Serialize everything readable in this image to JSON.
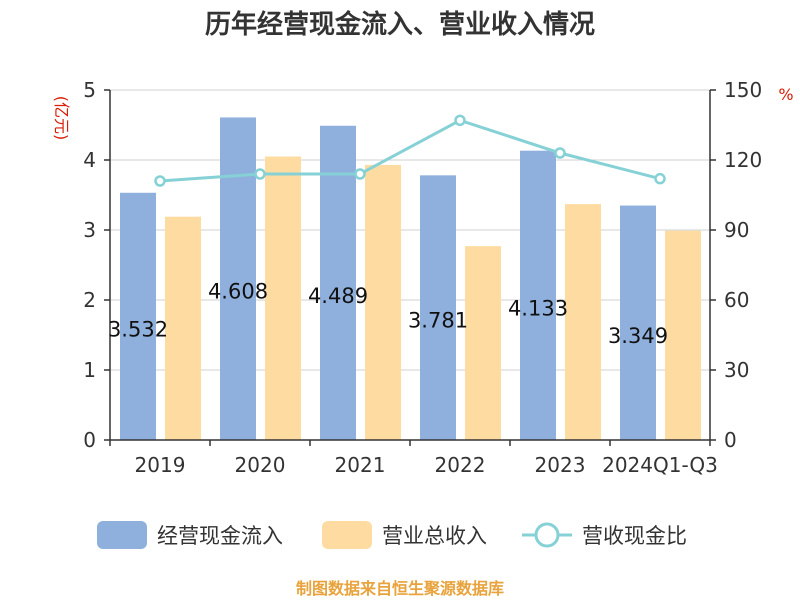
{
  "chart_data": {
    "type": "bar",
    "title": "历年经营现金流入、营业收入情况",
    "categories": [
      "2019",
      "2020",
      "2021",
      "2022",
      "2023",
      "2024Q1-Q3"
    ],
    "series": [
      {
        "name": "经营现金流入",
        "type": "bar",
        "axis": "left",
        "values": [
          3.532,
          4.608,
          4.489,
          3.781,
          4.133,
          3.349
        ],
        "data_labels": [
          "3.532",
          "4.608",
          "4.489",
          "3.781",
          "4.133",
          "3.349"
        ]
      },
      {
        "name": "营业总收入",
        "type": "bar",
        "axis": "left",
        "values": [
          3.19,
          4.05,
          3.93,
          2.77,
          3.37,
          2.99
        ]
      },
      {
        "name": "营收现金比",
        "type": "line",
        "axis": "right",
        "values": [
          111,
          114,
          114,
          137,
          123,
          112
        ]
      }
    ],
    "y_left": {
      "unit": "(亿元)",
      "range": [
        0,
        5
      ],
      "ticks": [
        "0",
        "1",
        "2",
        "3",
        "4",
        "5"
      ]
    },
    "y_right": {
      "unit": "%",
      "range": [
        0,
        150
      ],
      "ticks": [
        "0",
        "30",
        "60",
        "90",
        "120",
        "150"
      ]
    },
    "grid": true,
    "legend_position": "bottom",
    "colors": {
      "bar1": "#8fb0dc",
      "bar2": "#fedca1",
      "line": "#85d1d6"
    }
  },
  "source": "制图数据来自恒生聚源数据库"
}
